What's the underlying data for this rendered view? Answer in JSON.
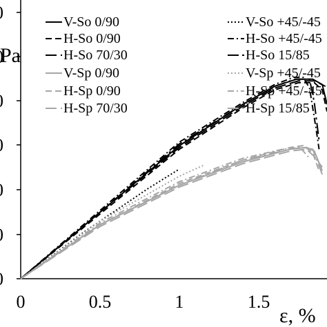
{
  "chart_data": {
    "type": "line",
    "title": "",
    "xlabel": "ε, %",
    "ylabel_fragment": "Pa",
    "xlim": [
      0,
      1.93
    ],
    "ylim": [
      0,
      1.55
    ],
    "x_ticks": [
      "0",
      "0.5",
      "1",
      "1.5"
    ],
    "y_ticks": [
      "0",
      "0",
      "0",
      "0",
      "0",
      "0",
      "0"
    ],
    "grid": false,
    "legend_position": "top",
    "series": [
      {
        "name": "V-So 0/90",
        "color": "#000000",
        "dash": "solid",
        "x": [
          0,
          0.5,
          1.0,
          1.4,
          1.6,
          1.74,
          1.84,
          1.9,
          1.93
        ],
        "y": [
          0,
          0.37,
          0.74,
          0.97,
          1.07,
          1.11,
          1.11,
          1.08,
          0.97
        ]
      },
      {
        "name": "V-So +45/-45",
        "color": "#000000",
        "dash": "dot",
        "x": [
          0,
          0.4,
          0.8,
          1.0
        ],
        "y": [
          0,
          0.26,
          0.5,
          0.61
        ]
      },
      {
        "name": "H-So 0/90",
        "color": "#000000",
        "dash": "dash",
        "x": [
          0,
          0.5,
          1.0,
          1.4,
          1.6,
          1.75,
          1.85,
          1.9,
          1.93
        ],
        "y": [
          0,
          0.36,
          0.72,
          0.95,
          1.05,
          1.09,
          1.09,
          1.05,
          0.93
        ]
      },
      {
        "name": "H-So +45/-45",
        "color": "#000000",
        "dash": "dashdot",
        "x": [
          0,
          0.5,
          1.0,
          1.4,
          1.6,
          1.72,
          1.78,
          1.82,
          1.86,
          1.88
        ],
        "y": [
          0,
          0.38,
          0.76,
          0.98,
          1.08,
          1.12,
          1.12,
          1.06,
          0.84,
          0.72
        ]
      },
      {
        "name": "H-So 70/30",
        "color": "#000000",
        "dash": "longdash",
        "x": [
          0,
          0.5,
          1.0,
          1.4,
          1.6,
          1.75,
          1.85,
          1.92
        ],
        "y": [
          0,
          0.37,
          0.73,
          0.96,
          1.06,
          1.1,
          1.1,
          1.07
        ]
      },
      {
        "name": "H-So 15/85",
        "color": "#000000",
        "dash": "longdashdot",
        "x": [
          0,
          0.5,
          1.0,
          1.4,
          1.6,
          1.73,
          1.82,
          1.85,
          1.88
        ],
        "y": [
          0,
          0.37,
          0.75,
          0.97,
          1.07,
          1.11,
          1.11,
          0.98,
          0.77
        ]
      },
      {
        "name": "V-Sp 0/90",
        "color": "#a6a6a6",
        "dash": "solid",
        "x": [
          0,
          0.5,
          1.0,
          1.4,
          1.7,
          1.8,
          1.85,
          1.9
        ],
        "y": [
          0,
          0.3,
          0.52,
          0.65,
          0.72,
          0.73,
          0.71,
          0.6
        ]
      },
      {
        "name": "V-Sp +45/-45",
        "color": "#a6a6a6",
        "dash": "dot",
        "x": [
          0,
          0.5,
          1.0,
          1.15
        ],
        "y": [
          0,
          0.32,
          0.57,
          0.63
        ]
      },
      {
        "name": "H-Sp 0/90",
        "color": "#a6a6a6",
        "dash": "dash",
        "x": [
          0,
          0.5,
          1.0,
          1.4,
          1.7,
          1.78,
          1.84,
          1.88
        ],
        "y": [
          0,
          0.3,
          0.53,
          0.66,
          0.73,
          0.74,
          0.7,
          0.6
        ]
      },
      {
        "name": "H-Sp +45/-45",
        "color": "#a6a6a6",
        "dash": "dashdot",
        "x": [
          0,
          0.5,
          1.0,
          1.4,
          1.65,
          1.76,
          1.82
        ],
        "y": [
          0,
          0.31,
          0.54,
          0.67,
          0.72,
          0.73,
          0.67
        ]
      },
      {
        "name": "H-Sp 70/30",
        "color": "#a6a6a6",
        "dash": "longdash",
        "x": [
          0,
          0.5,
          1.0,
          1.4,
          1.7,
          1.8,
          1.85,
          1.9
        ],
        "y": [
          0,
          0.29,
          0.51,
          0.64,
          0.71,
          0.72,
          0.68,
          0.62
        ]
      },
      {
        "name": "H-Sp 15/85",
        "color": "#a6a6a6",
        "dash": "longdashdot",
        "x": [
          0,
          0.5,
          1.0,
          1.4,
          1.7,
          1.78,
          1.84,
          1.9
        ],
        "y": [
          0,
          0.3,
          0.52,
          0.66,
          0.72,
          0.73,
          0.72,
          0.58
        ]
      }
    ]
  }
}
